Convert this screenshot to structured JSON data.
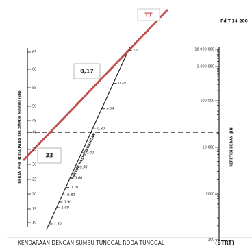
{
  "labels": {
    "tt": "TT",
    "doc_code": "Pd T-14-200",
    "ratio": "0,17",
    "load": "33",
    "footer": "KENDARAAN DENGAN SUMBU TUNGGAL RODA TUNGGAL",
    "footer_code": "(STRT)"
  },
  "axes": {
    "left": {
      "title": "BEBAN PER RODA PADA KELOMPOK SUMBU (kN)",
      "ticks": [
        "65",
        "60",
        "55",
        "50",
        "45",
        "40",
        "35",
        "30",
        "25",
        "20",
        "15",
        "10"
      ]
    },
    "middle": {
      "title": "FAKTOR RASIO TEGANGAN",
      "ticks": [
        "15",
        "0.20",
        "0.25",
        "0.30",
        "0.40",
        "0.50",
        "0.60",
        "0.70",
        "0.80",
        "0.90",
        "1.00",
        "1.50"
      ]
    },
    "right": {
      "title": "REPETISI BEBAN IJIN",
      "ticks": [
        "10 000 000",
        "1 000 000",
        "100 000",
        "10 000",
        "1000",
        "100"
      ]
    }
  }
}
